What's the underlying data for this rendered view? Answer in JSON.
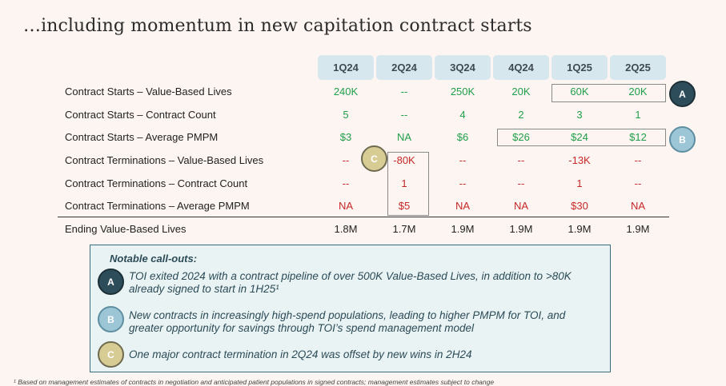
{
  "title": "…including momentum in new capitation contract starts",
  "columns": [
    "1Q24",
    "2Q24",
    "3Q24",
    "4Q24",
    "1Q25",
    "2Q25"
  ],
  "rows": [
    {
      "label": "Contract Starts – Value-Based Lives",
      "values": [
        "240K",
        "--",
        "250K",
        "20K",
        "60K",
        "20K"
      ]
    },
    {
      "label": "Contract Starts – Contract Count",
      "values": [
        "5",
        "--",
        "4",
        "2",
        "3",
        "1"
      ]
    },
    {
      "label": "Contract Starts – Average PMPM",
      "values": [
        "$3",
        "NA",
        "$6",
        "$26",
        "$24",
        "$12"
      ]
    },
    {
      "label": "Contract Terminations – Value-Based Lives",
      "values": [
        "--",
        "-80K",
        "--",
        "--",
        "-13K",
        "--"
      ]
    },
    {
      "label": "Contract Terminations – Contract Count",
      "values": [
        "--",
        "1",
        "--",
        "--",
        "1",
        "--"
      ]
    },
    {
      "label": "Contract Terminations – Average PMPM",
      "values": [
        "NA",
        "$5",
        "NA",
        "NA",
        "$30",
        "NA"
      ]
    },
    {
      "label": "Ending Value-Based Lives",
      "values": [
        "1.8M",
        "1.7M",
        "1.9M",
        "1.9M",
        "1.9M",
        "1.9M"
      ]
    }
  ],
  "markers": {
    "a": "A",
    "b": "B",
    "c": "C"
  },
  "callouts": {
    "title": "Notable call-outs:",
    "items": [
      {
        "marker": "A",
        "text_line1": "TOI exited 2024 with a contract pipeline of over 500K Value-Based Lives, in addition to >80K",
        "text_line2": "already signed to start in 1H25¹"
      },
      {
        "marker": "B",
        "text_line1": "New contracts in increasingly high-spend populations, leading to higher PMPM for TOI, and",
        "text_line2": "greater opportunity for savings through TOI’s spend management model"
      },
      {
        "marker": "C",
        "text_line1": "One major contract termination in 2Q24 was offset by new wins in 2H24",
        "text_line2": ""
      }
    ]
  },
  "footnote": "¹ Based on management estimates of contracts in negotiation and anticipated patient populations in signed contracts; management estimates subject to change",
  "colors": {
    "positive": "#1f9e4a",
    "negative": "#c62828",
    "header_bg": "#d6e7ee",
    "callout_bg": "#eaf3f4"
  }
}
